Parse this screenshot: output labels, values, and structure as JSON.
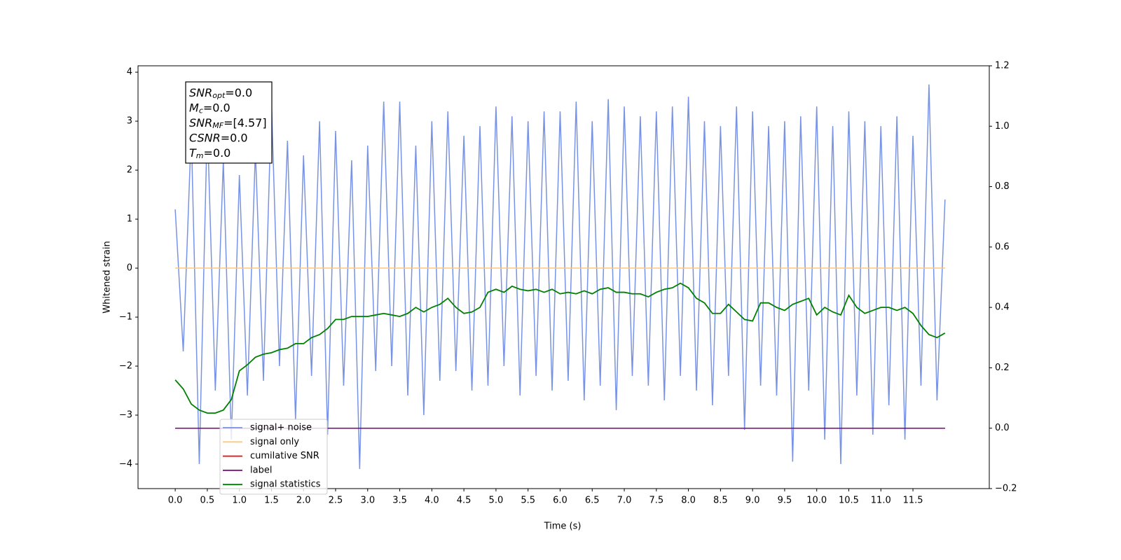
{
  "chart_data": {
    "type": "line",
    "xlabel": "Time (s)",
    "ylabel": "Whitened strain",
    "annotation": {
      "lines": [
        {
          "symbol": "SNR",
          "sub": "opt",
          "value": "=0.0"
        },
        {
          "symbol": "M",
          "sub": "c",
          "value": "=0.0"
        },
        {
          "symbol": "SNR",
          "sub": "MF",
          "value": "=[4.57]"
        },
        {
          "symbol": "CSNR",
          "sub": "",
          "value": "=0.0"
        },
        {
          "symbol": "T",
          "sub": "m",
          "value": "=0.0"
        }
      ]
    },
    "x": [
      0,
      0.125,
      0.25,
      0.375,
      0.5,
      0.625,
      0.75,
      0.875,
      1,
      1.125,
      1.25,
      1.375,
      1.5,
      1.625,
      1.75,
      1.875,
      2,
      2.125,
      2.25,
      2.375,
      2.5,
      2.625,
      2.75,
      2.875,
      3,
      3.125,
      3.25,
      3.375,
      3.5,
      3.625,
      3.75,
      3.875,
      4,
      4.125,
      4.25,
      4.375,
      4.5,
      4.625,
      4.75,
      4.875,
      5,
      5.125,
      5.25,
      5.375,
      5.5,
      5.625,
      5.75,
      5.875,
      6,
      6.125,
      6.25,
      6.375,
      6.5,
      6.625,
      6.75,
      6.875,
      7,
      7.125,
      7.25,
      7.375,
      7.5,
      7.625,
      7.75,
      7.875,
      8,
      8.125,
      8.25,
      8.375,
      8.5,
      8.625,
      8.75,
      8.875,
      9,
      9.125,
      9.25,
      9.375,
      9.5,
      9.625,
      9.75,
      9.875,
      10,
      10.125,
      10.25,
      10.375,
      10.5,
      10.625,
      10.75,
      10.875,
      11,
      11.125,
      11.25,
      11.375,
      11.5,
      11.625,
      11.75,
      11.875,
      12
    ],
    "series": [
      {
        "name": "signal+ noise",
        "color": "#7893e6",
        "axis": "y",
        "values": [
          1.2,
          -1.7,
          2.8,
          -4.0,
          3.0,
          -2.5,
          2.2,
          -3.5,
          1.9,
          -2.6,
          2.4,
          -2.3,
          3.4,
          -2.0,
          2.6,
          -3.1,
          2.3,
          -2.2,
          3.0,
          -3.4,
          2.8,
          -2.4,
          2.2,
          -4.1,
          2.5,
          -2.1,
          3.4,
          -2.0,
          3.4,
          -2.6,
          2.5,
          -3.0,
          3.0,
          -2.3,
          3.2,
          -2.1,
          2.7,
          -2.5,
          2.9,
          -2.4,
          3.3,
          -2.0,
          3.1,
          -2.6,
          3.0,
          -2.2,
          3.2,
          -2.5,
          3.2,
          -2.3,
          3.4,
          -2.7,
          3.0,
          -2.4,
          3.45,
          -2.9,
          3.3,
          -2.2,
          3.1,
          -2.4,
          3.2,
          -2.7,
          3.3,
          -2.2,
          3.5,
          -2.5,
          3.0,
          -2.8,
          2.9,
          -2.2,
          3.3,
          -3.3,
          3.2,
          -2.4,
          2.9,
          -2.6,
          3.0,
          -3.95,
          3.1,
          -2.5,
          3.3,
          -3.5,
          2.9,
          -4.0,
          3.2,
          -2.6,
          3.0,
          -3.4,
          2.9,
          -2.8,
          3.1,
          -3.5,
          2.7,
          -2.4,
          3.75,
          -2.7,
          1.4
        ]
      },
      {
        "name": "signal only",
        "color": "#ffc77a",
        "axis": "y",
        "values": [
          0,
          0,
          0,
          0,
          0,
          0,
          0,
          0,
          0,
          0,
          0,
          0,
          0,
          0,
          0,
          0,
          0,
          0,
          0,
          0,
          0,
          0,
          0,
          0,
          0,
          0,
          0,
          0,
          0,
          0,
          0,
          0,
          0,
          0,
          0,
          0,
          0,
          0,
          0,
          0,
          0,
          0,
          0,
          0,
          0,
          0,
          0,
          0,
          0,
          0,
          0,
          0,
          0,
          0,
          0,
          0,
          0,
          0,
          0,
          0,
          0,
          0,
          0,
          0,
          0,
          0,
          0,
          0,
          0,
          0,
          0,
          0,
          0,
          0,
          0,
          0,
          0,
          0,
          0,
          0,
          0,
          0,
          0,
          0,
          0,
          0,
          0,
          0,
          0,
          0,
          0,
          0,
          0,
          0,
          0,
          0,
          0
        ]
      },
      {
        "name": "cumilative SNR",
        "color": "#ff0000",
        "axis": "y2",
        "values": [
          0,
          0,
          0,
          0,
          0,
          0,
          0,
          0,
          0,
          0,
          0,
          0,
          0,
          0,
          0,
          0,
          0,
          0,
          0,
          0,
          0,
          0,
          0,
          0,
          0,
          0,
          0,
          0,
          0,
          0,
          0,
          0,
          0,
          0,
          0,
          0,
          0,
          0,
          0,
          0,
          0,
          0,
          0,
          0,
          0,
          0,
          0,
          0,
          0,
          0,
          0,
          0,
          0,
          0,
          0,
          0,
          0,
          0,
          0,
          0,
          0,
          0,
          0,
          0,
          0,
          0,
          0,
          0,
          0,
          0,
          0,
          0,
          0,
          0,
          0,
          0,
          0,
          0,
          0,
          0,
          0,
          0,
          0,
          0,
          0,
          0,
          0,
          0,
          0,
          0,
          0,
          0,
          0,
          0,
          0,
          0,
          0
        ]
      },
      {
        "name": "label",
        "color": "#800080",
        "axis": "y2",
        "values": [
          0,
          0,
          0,
          0,
          0,
          0,
          0,
          0,
          0,
          0,
          0,
          0,
          0,
          0,
          0,
          0,
          0,
          0,
          0,
          0,
          0,
          0,
          0,
          0,
          0,
          0,
          0,
          0,
          0,
          0,
          0,
          0,
          0,
          0,
          0,
          0,
          0,
          0,
          0,
          0,
          0,
          0,
          0,
          0,
          0,
          0,
          0,
          0,
          0,
          0,
          0,
          0,
          0,
          0,
          0,
          0,
          0,
          0,
          0,
          0,
          0,
          0,
          0,
          0,
          0,
          0,
          0,
          0,
          0,
          0,
          0,
          0,
          0,
          0,
          0,
          0,
          0,
          0,
          0,
          0,
          0,
          0,
          0,
          0,
          0,
          0,
          0,
          0,
          0,
          0,
          0,
          0,
          0,
          0,
          0,
          0,
          0
        ]
      },
      {
        "name": "signal statistics",
        "color": "#008000",
        "axis": "y2",
        "values": [
          0.16,
          0.13,
          0.08,
          0.06,
          0.05,
          0.05,
          0.06,
          0.095,
          0.19,
          0.21,
          0.235,
          0.245,
          0.25,
          0.26,
          0.265,
          0.28,
          0.28,
          0.3,
          0.31,
          0.33,
          0.36,
          0.36,
          0.37,
          0.37,
          0.37,
          0.375,
          0.38,
          0.375,
          0.37,
          0.38,
          0.4,
          0.385,
          0.4,
          0.41,
          0.43,
          0.4,
          0.38,
          0.385,
          0.4,
          0.45,
          0.46,
          0.45,
          0.47,
          0.46,
          0.455,
          0.46,
          0.45,
          0.46,
          0.445,
          0.45,
          0.445,
          0.455,
          0.445,
          0.46,
          0.465,
          0.45,
          0.45,
          0.445,
          0.445,
          0.435,
          0.45,
          0.46,
          0.465,
          0.48,
          0.465,
          0.43,
          0.415,
          0.38,
          0.38,
          0.41,
          0.385,
          0.36,
          0.355,
          0.415,
          0.415,
          0.4,
          0.39,
          0.41,
          0.42,
          0.43,
          0.375,
          0.4,
          0.385,
          0.375,
          0.44,
          0.4,
          0.38,
          0.39,
          0.4,
          0.4,
          0.39,
          0.4,
          0.38,
          0.34,
          0.31,
          0.3,
          0.315
        ]
      }
    ],
    "xlim": [
      -0.58,
      12.69
    ],
    "xticks": [
      {
        "value": 0,
        "label": "0.0"
      },
      0.5,
      {
        "value": 1,
        "label": "1.0"
      },
      1.5,
      {
        "value": 2,
        "label": "2.0"
      },
      2.5,
      {
        "value": 3,
        "label": "3.0"
      },
      3.5,
      {
        "value": 4,
        "label": "4.0"
      },
      4.5,
      {
        "value": 5,
        "label": "5.0"
      },
      5.5,
      {
        "value": 6,
        "label": "6.0"
      },
      6.5,
      {
        "value": 7,
        "label": "7.0"
      },
      7.5,
      {
        "value": 8,
        "label": "8.0"
      },
      8.5,
      {
        "value": 9,
        "label": "9.0"
      },
      9.5,
      {
        "value": 10,
        "label": "10.0"
      },
      10.5,
      {
        "value": 11,
        "label": "11.0"
      },
      11.5
    ],
    "ylim": [
      -4.5,
      4.13
    ],
    "yticks": [
      {
        "value": -4,
        "label": "−4"
      },
      {
        "value": -3,
        "label": "−3"
      },
      {
        "value": -2,
        "label": "−2"
      },
      {
        "value": -1,
        "label": "−1"
      },
      0,
      1,
      2,
      3,
      4
    ],
    "y2lim": [
      -0.2,
      1.2
    ],
    "y2ticks": [
      {
        "value": -0.2,
        "label": "−0.2"
      },
      {
        "value": 0,
        "label": "0.0"
      },
      0.2,
      0.4,
      0.6,
      0.8,
      {
        "value": 1,
        "label": "1.0"
      },
      1.2
    ],
    "legend_loc": "lower left"
  }
}
